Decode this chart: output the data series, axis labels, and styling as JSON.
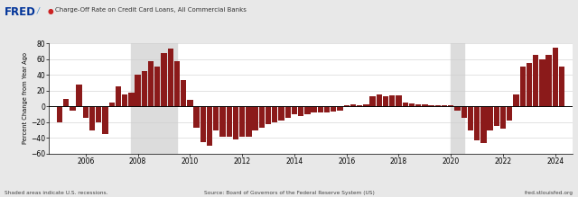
{
  "title": "Charge-Off Rate on Credit Card Loans, All Commercial Banks",
  "ylabel": "Percent Change from Year Ago",
  "ylim": [
    -60,
    80
  ],
  "yticks": [
    -60,
    -40,
    -20,
    0,
    20,
    40,
    60,
    80
  ],
  "background_color": "#e8e8e8",
  "plot_bg_color": "#ffffff",
  "bar_color": "#8b1a1a",
  "recession_shading": [
    {
      "start": 2007.75,
      "end": 2009.5
    },
    {
      "start": 2020.0,
      "end": 2020.5
    }
  ],
  "fred_logo_color": "#003399",
  "dates": [
    2005.0,
    2005.25,
    2005.5,
    2005.75,
    2006.0,
    2006.25,
    2006.5,
    2006.75,
    2007.0,
    2007.25,
    2007.5,
    2007.75,
    2008.0,
    2008.25,
    2008.5,
    2008.75,
    2009.0,
    2009.25,
    2009.5,
    2009.75,
    2010.0,
    2010.25,
    2010.5,
    2010.75,
    2011.0,
    2011.25,
    2011.5,
    2011.75,
    2012.0,
    2012.25,
    2012.5,
    2012.75,
    2013.0,
    2013.25,
    2013.5,
    2013.75,
    2014.0,
    2014.25,
    2014.5,
    2014.75,
    2015.0,
    2015.25,
    2015.5,
    2015.75,
    2016.0,
    2016.25,
    2016.5,
    2016.75,
    2017.0,
    2017.25,
    2017.5,
    2017.75,
    2018.0,
    2018.25,
    2018.5,
    2018.75,
    2019.0,
    2019.25,
    2019.5,
    2019.75,
    2020.0,
    2020.25,
    2020.5,
    2020.75,
    2021.0,
    2021.25,
    2021.5,
    2021.75,
    2022.0,
    2022.25,
    2022.5,
    2022.75,
    2023.0,
    2023.25,
    2023.5,
    2023.75,
    2024.0,
    2024.25
  ],
  "values": [
    -20,
    10,
    -5,
    28,
    -15,
    -30,
    -20,
    -35,
    5,
    25,
    15,
    17,
    40,
    45,
    57,
    50,
    68,
    73,
    57,
    33,
    8,
    -27,
    -45,
    -50,
    -30,
    -38,
    -38,
    -42,
    -38,
    -38,
    -30,
    -27,
    -22,
    -20,
    -18,
    -15,
    -10,
    -12,
    -10,
    -8,
    -8,
    -8,
    -6,
    -5,
    2,
    3,
    1,
    3,
    13,
    15,
    13,
    14,
    14,
    5,
    4,
    3,
    3,
    2,
    1,
    2,
    2,
    -5,
    -15,
    -30,
    -43,
    -47,
    -30,
    -25,
    -28,
    -18,
    15,
    50,
    55,
    65,
    60,
    65,
    75,
    50
  ],
  "xtick_positions": [
    2006,
    2008,
    2010,
    2012,
    2014,
    2016,
    2018,
    2020,
    2022,
    2024
  ],
  "footer_left": "Shaded areas indicate U.S. recessions.",
  "footer_center": "Source: Board of Governors of the Federal Reserve System (US)",
  "footer_right": "fred.stlouisfed.org"
}
